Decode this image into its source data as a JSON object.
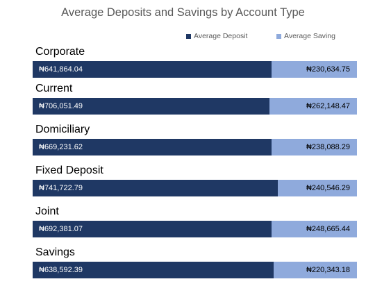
{
  "chart_data": {
    "type": "bar",
    "orientation": "horizontal-stacked-100",
    "title": "Average Deposits and Savings by Account Type",
    "legend_position": "top-right",
    "grid": false,
    "categories": [
      "Corporate",
      "Current",
      "Domiciliary",
      "Fixed Deposit",
      "Joint",
      "Savings"
    ],
    "series": [
      {
        "name": "Average Deposit",
        "color": "#1f3864",
        "values": [
          641864.04,
          706051.49,
          669231.62,
          741722.79,
          692381.07,
          638592.39
        ],
        "labels": [
          "₦641,864.04",
          "₦706,051.49",
          "₦669,231.62",
          "₦741,722.79",
          "₦692,381.07",
          "₦638,592.39"
        ]
      },
      {
        "name": "Average Saving",
        "color": "#8faadc",
        "values": [
          230634.75,
          262148.47,
          238088.29,
          240546.29,
          248665.44,
          220343.18
        ],
        "labels": [
          "₦230,634.75",
          "₦262,148.47",
          "₦238,088.29",
          "₦240,546.29",
          "₦248,665.44",
          "₦220,343.18"
        ]
      }
    ]
  }
}
